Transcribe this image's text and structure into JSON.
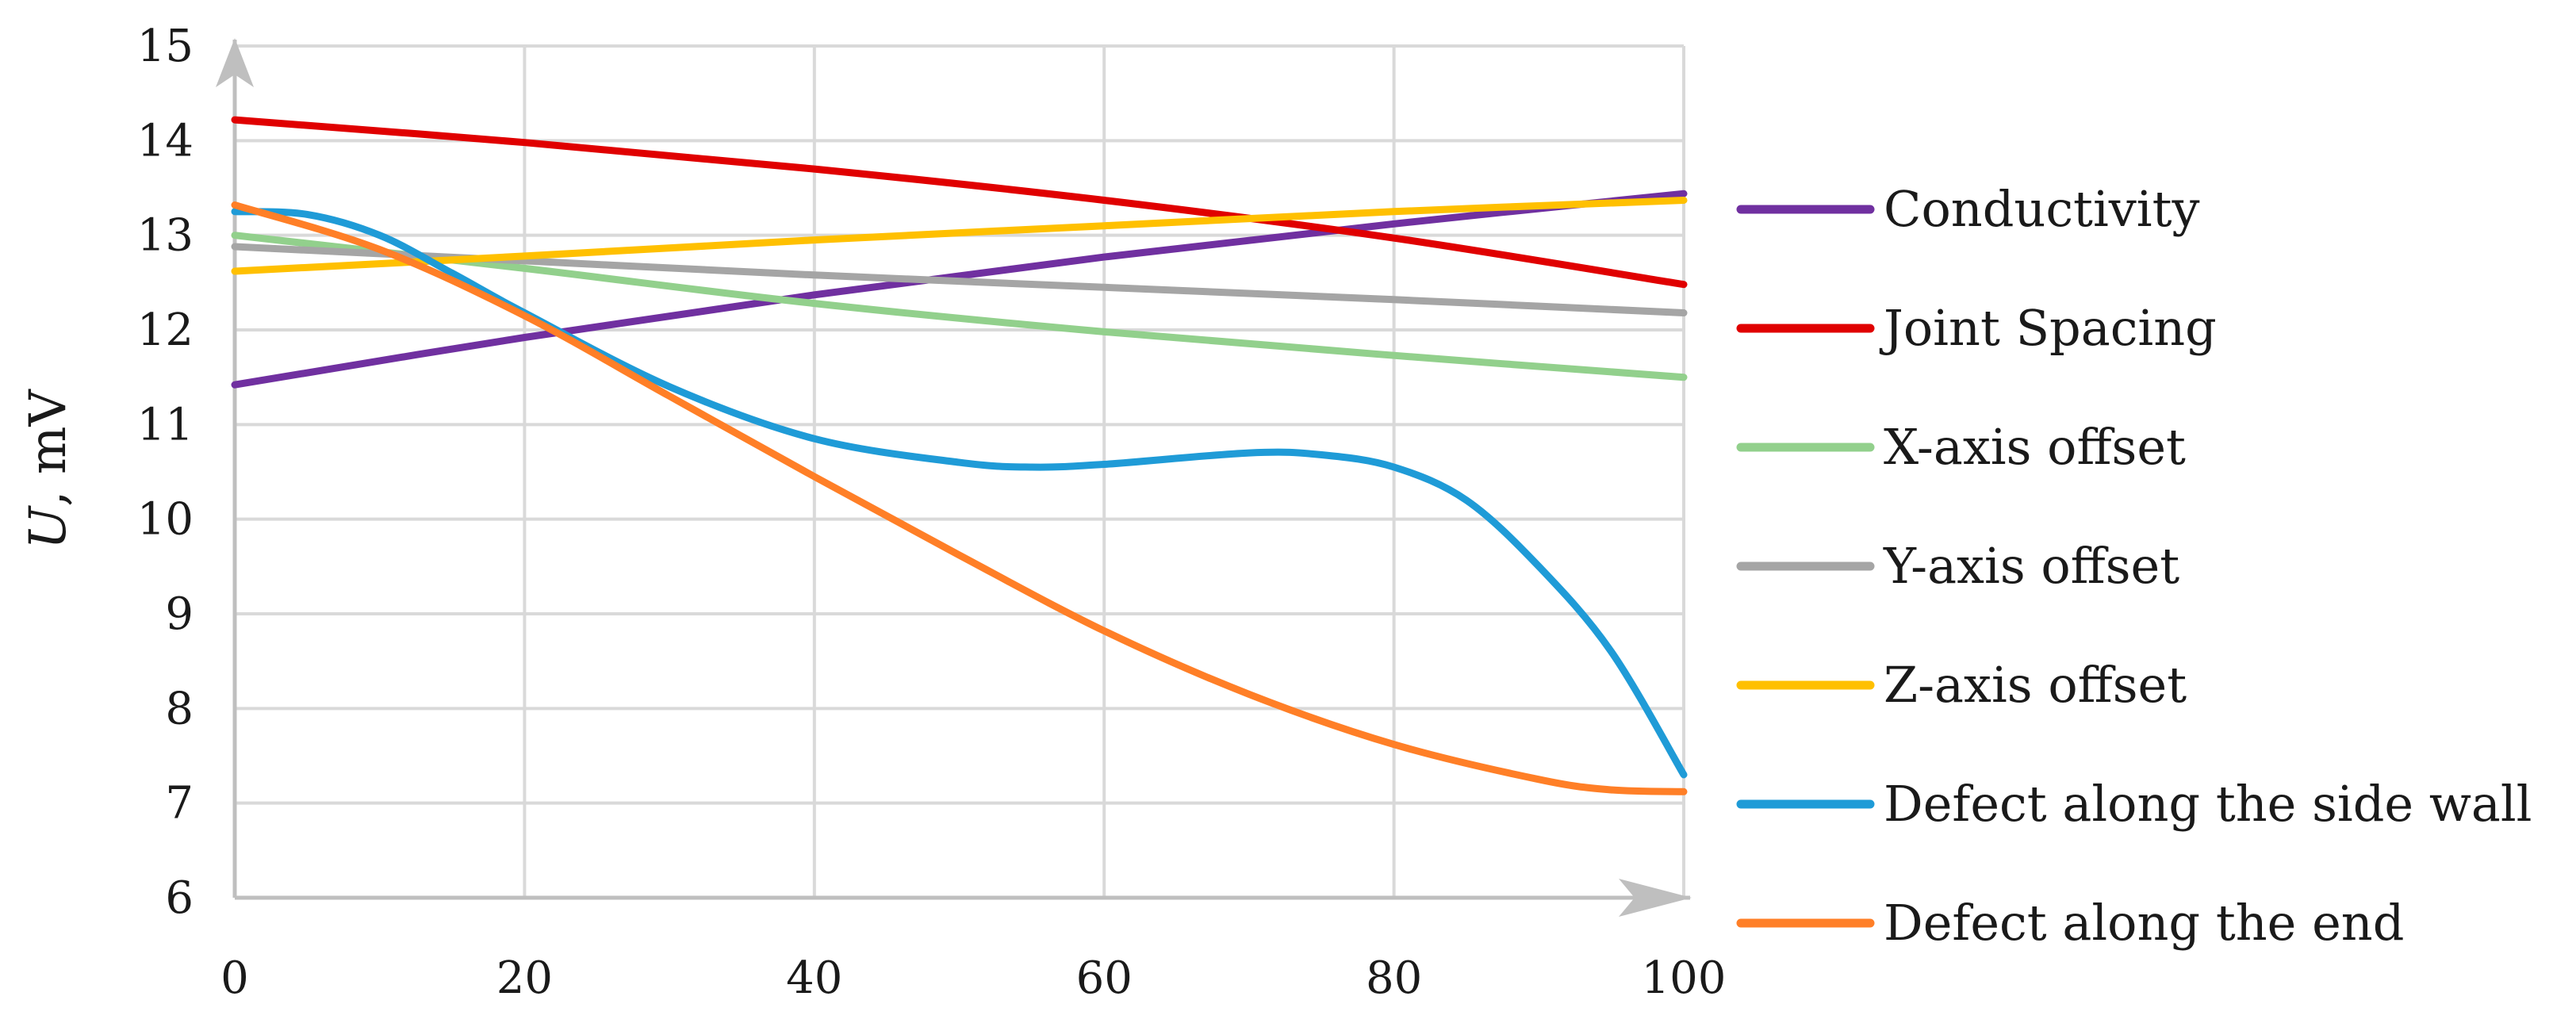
{
  "chart_data": {
    "type": "line",
    "title": "",
    "xlabel": "",
    "ylabel_italic": "U",
    "ylabel_rest": ", mV",
    "xlim": [
      0,
      100
    ],
    "ylim": [
      6,
      15
    ],
    "xticks": [
      0,
      20,
      40,
      60,
      80,
      100
    ],
    "yticks": [
      6,
      7,
      8,
      9,
      10,
      11,
      12,
      13,
      14,
      15
    ],
    "grid": true,
    "legend_position": "right",
    "series": [
      {
        "name": "Conductivity",
        "color": "#7030a0",
        "x": [
          0,
          20,
          40,
          60,
          80,
          100
        ],
        "y": [
          11.42,
          11.92,
          12.37,
          12.77,
          13.12,
          13.44
        ]
      },
      {
        "name": "Joint Spacing",
        "color": "#e00000",
        "x": [
          0,
          20,
          40,
          60,
          80,
          100
        ],
        "y": [
          14.22,
          13.98,
          13.7,
          13.37,
          12.97,
          12.48
        ]
      },
      {
        "name": "X-axis offset",
        "color": "#92d08c",
        "x": [
          0,
          20,
          40,
          60,
          80,
          100
        ],
        "y": [
          13.0,
          12.65,
          12.28,
          11.98,
          11.73,
          11.5
        ]
      },
      {
        "name": "Y-axis offset",
        "color": "#a5a5a5",
        "x": [
          0,
          20,
          40,
          60,
          80,
          100
        ],
        "y": [
          12.88,
          12.73,
          12.58,
          12.45,
          12.32,
          12.18
        ]
      },
      {
        "name": "Z-axis offset",
        "color": "#ffc000",
        "x": [
          0,
          20,
          40,
          60,
          80,
          100
        ],
        "y": [
          12.62,
          12.78,
          12.95,
          13.1,
          13.25,
          13.37
        ]
      },
      {
        "name": "Defect along the side wall",
        "color": "#1f9bd7",
        "x": [
          0,
          5,
          10,
          15,
          20,
          30,
          40,
          50,
          55,
          60,
          70,
          75,
          80,
          85,
          90,
          95,
          100
        ],
        "y": [
          13.25,
          13.22,
          13.0,
          12.6,
          12.18,
          11.4,
          10.85,
          10.6,
          10.55,
          10.58,
          10.7,
          10.68,
          10.55,
          10.2,
          9.5,
          8.6,
          7.3
        ]
      },
      {
        "name": "Defect along the end",
        "color": "#ff7f27",
        "x": [
          0,
          10,
          20,
          30,
          40,
          50,
          60,
          70,
          80,
          90,
          95,
          100
        ],
        "y": [
          13.32,
          12.85,
          12.15,
          11.3,
          10.45,
          9.62,
          8.82,
          8.15,
          7.62,
          7.25,
          7.14,
          7.12
        ]
      }
    ]
  }
}
